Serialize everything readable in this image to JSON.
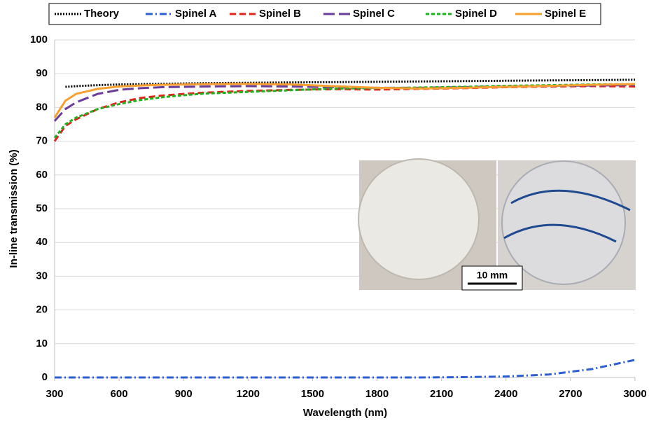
{
  "chart_data": {
    "type": "line",
    "x_label": "Wavelength (nm)",
    "y_label": "In-line transmission (%)",
    "x": [
      300,
      350,
      400,
      500,
      600,
      700,
      800,
      900,
      1000,
      1200,
      1400,
      1600,
      1800,
      2000,
      2200,
      2400,
      2600,
      2800,
      3000
    ],
    "series": [
      {
        "name": "Theory",
        "color": "#000000",
        "dash": "dotted",
        "values": [
          null,
          86.1,
          86.3,
          86.6,
          86.8,
          86.9,
          87.0,
          87.1,
          87.2,
          87.3,
          87.4,
          87.5,
          87.6,
          87.7,
          87.8,
          87.9,
          88.0,
          88.1,
          88.2
        ]
      },
      {
        "name": "Spinel A",
        "color": "#2e5fd0",
        "dash": "dashdot",
        "values": [
          0,
          0,
          0,
          0,
          0,
          0,
          0,
          0,
          0,
          0,
          0,
          0,
          0,
          0,
          0.1,
          0.3,
          0.9,
          2.5,
          5.2
        ]
      },
      {
        "name": "Spinel B",
        "color": "#e0231c",
        "dash": "dashed",
        "values": [
          70,
          74.5,
          76.5,
          79.5,
          81.5,
          82.8,
          83.5,
          84,
          84.4,
          84.9,
          85.2,
          85.4,
          85.3,
          85.5,
          85.7,
          86,
          86.2,
          86.3,
          86.2
        ]
      },
      {
        "name": "Spinel C",
        "color": "#6a3d9a",
        "dash": "longdash",
        "values": [
          76,
          79.5,
          81.5,
          84,
          85.2,
          85.7,
          86,
          86.1,
          86.2,
          86.3,
          86.2,
          86,
          85.8,
          85.8,
          86,
          86.2,
          86.4,
          86.5,
          86.6
        ]
      },
      {
        "name": "Spinel D",
        "color": "#22b022",
        "dash": "shortdash",
        "values": [
          71,
          75,
          77,
          79.5,
          81,
          82.2,
          83,
          83.6,
          84.1,
          84.6,
          85.1,
          85.6,
          85.7,
          85.9,
          86.1,
          86.4,
          86.6,
          86.8,
          86.9
        ]
      },
      {
        "name": "Spinel E",
        "color": "#f7a030",
        "dash": "solid",
        "values": [
          77,
          82,
          84,
          85.5,
          86.2,
          86.5,
          86.7,
          86.8,
          86.9,
          87,
          86.8,
          86.3,
          85.8,
          85.6,
          85.8,
          86.1,
          86.4,
          86.7,
          86.9
        ]
      }
    ],
    "xlim": [
      300,
      3000
    ],
    "xticks": [
      300,
      600,
      900,
      1200,
      1500,
      1800,
      2100,
      2400,
      2700,
      3000
    ],
    "ylim": [
      0,
      100
    ],
    "yticks": [
      0,
      10,
      20,
      30,
      40,
      50,
      60,
      70,
      80,
      90,
      100
    ],
    "grid": true,
    "legend": "top",
    "inset_scale_label": "10 mm"
  }
}
